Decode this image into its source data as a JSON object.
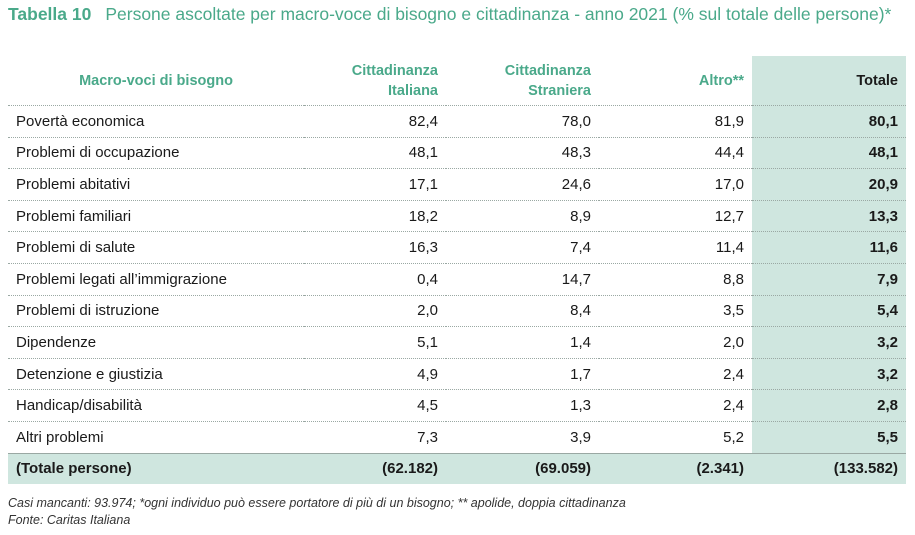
{
  "header": {
    "label": "Tabella 10",
    "title": "Persone ascoltate per macro-voce di bisogno e cittadinanza - anno 2021 (% sul totale delle persone)*"
  },
  "columns": {
    "label": "Macro-voci di bisogno",
    "italian": "Cittadinanza Italiana",
    "foreign": "Cittadinanza Straniera",
    "other": "Altro**",
    "total": "Totale"
  },
  "rows": [
    {
      "label": "Povertà economica",
      "italian": "82,4",
      "foreign": "78,0",
      "other": "81,9",
      "total": "80,1"
    },
    {
      "label": "Problemi di occupazione",
      "italian": "48,1",
      "foreign": "48,3",
      "other": "44,4",
      "total": "48,1"
    },
    {
      "label": "Problemi abitativi",
      "italian": "17,1",
      "foreign": "24,6",
      "other": "17,0",
      "total": "20,9"
    },
    {
      "label": "Problemi familiari",
      "italian": "18,2",
      "foreign": "8,9",
      "other": "12,7",
      "total": "13,3"
    },
    {
      "label": "Problemi di salute",
      "italian": "16,3",
      "foreign": "7,4",
      "other": "11,4",
      "total": "11,6"
    },
    {
      "label": "Problemi legati all’immigrazione",
      "italian": "0,4",
      "foreign": "14,7",
      "other": "8,8",
      "total": "7,9"
    },
    {
      "label": "Problemi di istruzione",
      "italian": "2,0",
      "foreign": "8,4",
      "other": "3,5",
      "total": "5,4"
    },
    {
      "label": "Dipendenze",
      "italian": "5,1",
      "foreign": "1,4",
      "other": "2,0",
      "total": "3,2"
    },
    {
      "label": "Detenzione e giustizia",
      "italian": "4,9",
      "foreign": "1,7",
      "other": "2,4",
      "total": "3,2"
    },
    {
      "label": "Handicap/disabilità",
      "italian": "4,5",
      "foreign": "1,3",
      "other": "2,4",
      "total": "2,8"
    },
    {
      "label": "Altri problemi",
      "italian": "7,3",
      "foreign": "3,9",
      "other": "5,2",
      "total": "5,5"
    }
  ],
  "totals": {
    "label": "(Totale persone)",
    "italian": "(62.182)",
    "foreign": "(69.059)",
    "other": "(2.341)",
    "total": "(133.582)"
  },
  "notes": {
    "line1": "Casi mancanti: 93.974; *ogni individuo può essere portatore di più di un bisogno; ** apolide, doppia cittadinanza",
    "line2": "Fonte: Caritas Italiana"
  },
  "colors": {
    "accent": "#4aa98a",
    "total_column_bg": "#cfe6df"
  }
}
